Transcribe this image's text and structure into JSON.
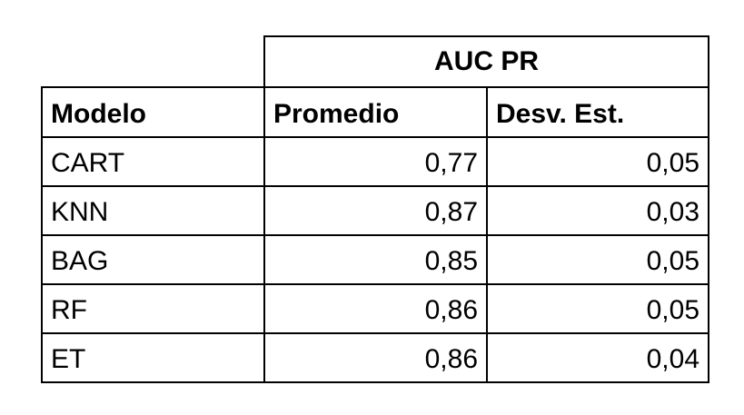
{
  "table": {
    "group_header": "AUC PR",
    "columns": [
      "Modelo",
      "Promedio",
      "Desv. Est."
    ],
    "rows": [
      {
        "model": "CART",
        "mean": "0,77",
        "std": "0,05"
      },
      {
        "model": "KNN",
        "mean": "0,87",
        "std": "0,03"
      },
      {
        "model": "BAG",
        "mean": "0,85",
        "std": "0,05"
      },
      {
        "model": "RF",
        "mean": "0,86",
        "std": "0,05"
      },
      {
        "model": "ET",
        "mean": "0,86",
        "std": "0,04"
      }
    ]
  }
}
